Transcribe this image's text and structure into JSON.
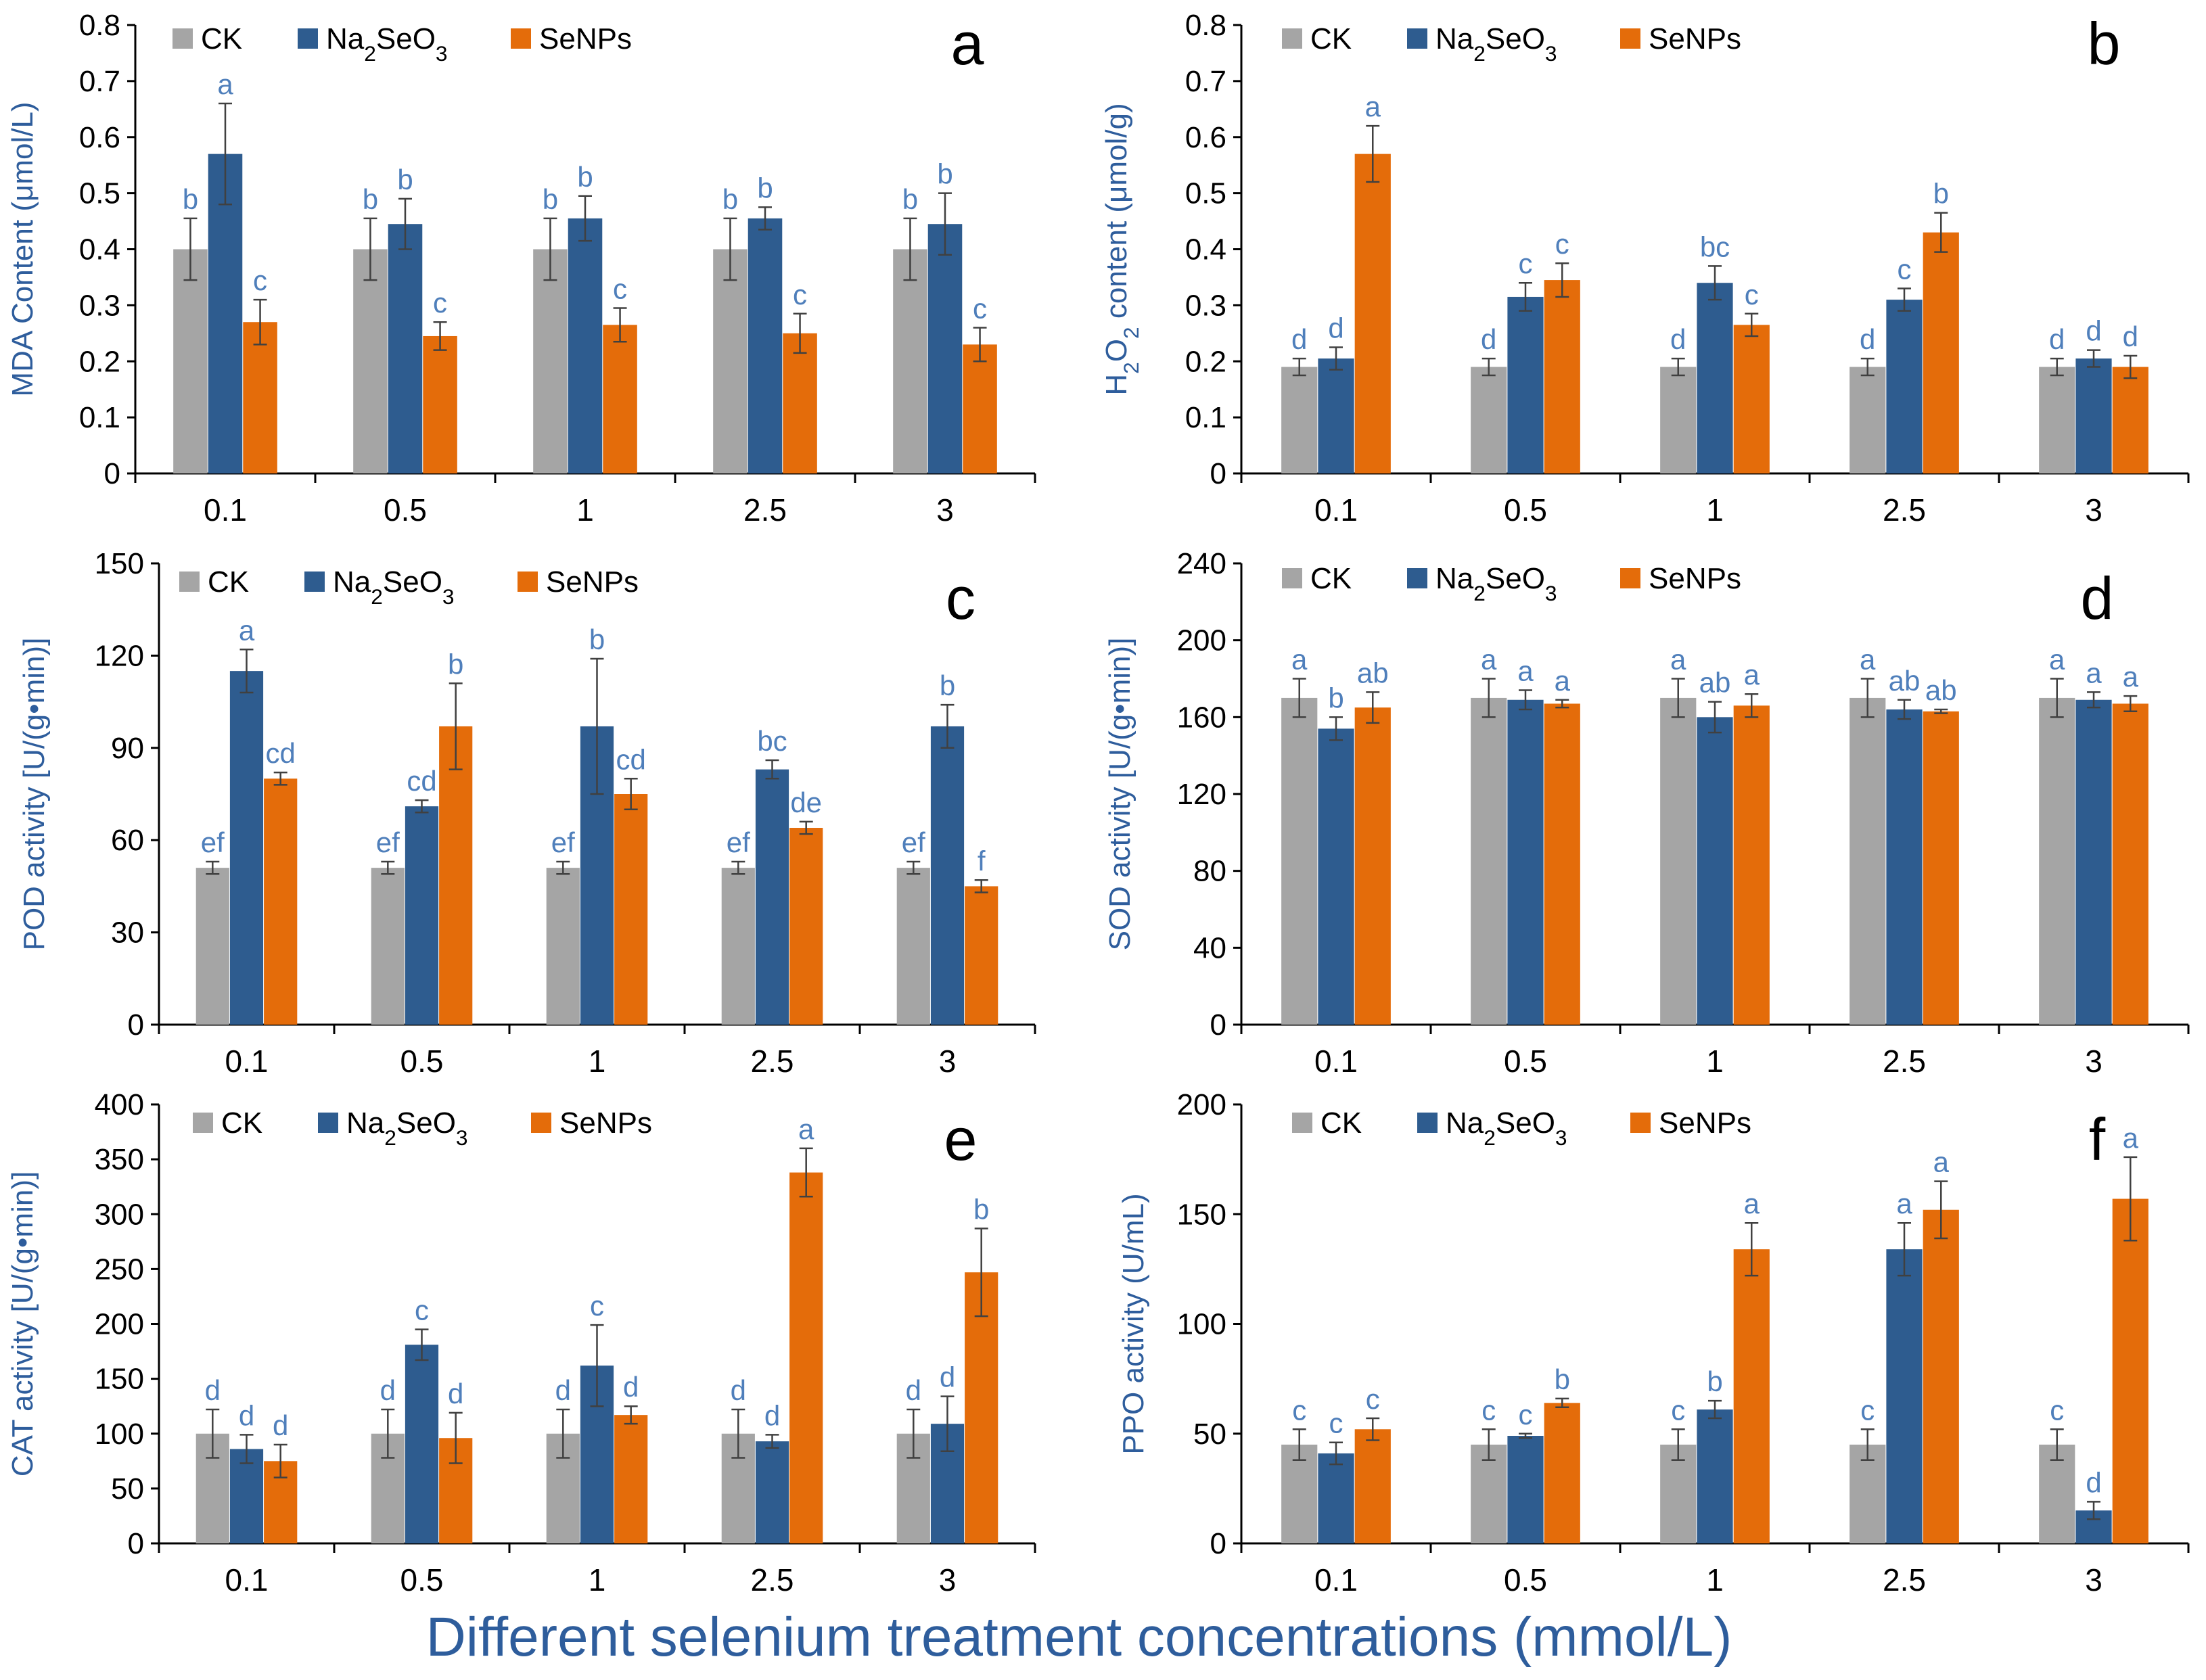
{
  "colors": {
    "CK": "#a5a5a5",
    "Na2SeO3": "#2e5c8f",
    "SeNPs": "#e46c0a",
    "sig": "#4f7fbb",
    "label": "#2e5d9c"
  },
  "x_axis_title": "Different selenium treatment concentrations (mmol/L)",
  "chart_data": [
    {
      "panel": "a",
      "type": "bar",
      "ylabel": "MDA Content (μmol/L)",
      "categories": [
        "0.1",
        "0.5",
        "1",
        "2.5",
        "3"
      ],
      "ylim": [
        0,
        0.8
      ],
      "yticks": [
        "0",
        "0.1",
        "0.2",
        "0.3",
        "0.4",
        "0.5",
        "0.6",
        "0.7",
        "0.8"
      ],
      "series": [
        {
          "name": "CK",
          "values": [
            0.4,
            0.4,
            0.4,
            0.4,
            0.4
          ],
          "errors": [
            0.055,
            0.055,
            0.055,
            0.055,
            0.055
          ],
          "letters": [
            "b",
            "b",
            "b",
            "b",
            "b"
          ]
        },
        {
          "name": "Na2SeO3",
          "values": [
            0.57,
            0.445,
            0.455,
            0.455,
            0.445
          ],
          "errors": [
            0.09,
            0.045,
            0.04,
            0.02,
            0.055
          ],
          "letters": [
            "a",
            "b",
            "b",
            "b",
            "b"
          ]
        },
        {
          "name": "SeNPs",
          "values": [
            0.27,
            0.245,
            0.265,
            0.25,
            0.23
          ],
          "errors": [
            0.04,
            0.025,
            0.03,
            0.035,
            0.03
          ],
          "letters": [
            "c",
            "c",
            "c",
            "c",
            "c"
          ]
        }
      ]
    },
    {
      "panel": "b",
      "type": "bar",
      "ylabel": "H2O2 content (μmol/g)",
      "categories": [
        "0.1",
        "0.5",
        "1",
        "2.5",
        "3"
      ],
      "ylim": [
        0,
        0.8
      ],
      "yticks": [
        "0",
        "0.1",
        "0.2",
        "0.3",
        "0.4",
        "0.5",
        "0.6",
        "0.7",
        "0.8"
      ],
      "series": [
        {
          "name": "CK",
          "values": [
            0.19,
            0.19,
            0.19,
            0.19,
            0.19
          ],
          "errors": [
            0.015,
            0.015,
            0.015,
            0.015,
            0.015
          ],
          "letters": [
            "d",
            "d",
            "d",
            "d",
            "d"
          ]
        },
        {
          "name": "Na2SeO3",
          "values": [
            0.205,
            0.315,
            0.34,
            0.31,
            0.205
          ],
          "errors": [
            0.02,
            0.025,
            0.03,
            0.02,
            0.015
          ],
          "letters": [
            "d",
            "c",
            "bc",
            "c",
            "d"
          ]
        },
        {
          "name": "SeNPs",
          "values": [
            0.57,
            0.345,
            0.265,
            0.43,
            0.19
          ],
          "errors": [
            0.05,
            0.03,
            0.02,
            0.035,
            0.02
          ],
          "letters": [
            "a",
            "c",
            "c",
            "b",
            "d"
          ]
        }
      ]
    },
    {
      "panel": "c",
      "type": "bar",
      "ylabel": "POD activity [U/(g•min)]",
      "categories": [
        "0.1",
        "0.5",
        "1",
        "2.5",
        "3"
      ],
      "ylim": [
        0,
        150
      ],
      "yticks": [
        "0",
        "30",
        "60",
        "90",
        "120",
        "150"
      ],
      "series": [
        {
          "name": "CK",
          "values": [
            51,
            51,
            51,
            51,
            51
          ],
          "errors": [
            2,
            2,
            2,
            2,
            2
          ],
          "letters": [
            "ef",
            "ef",
            "ef",
            "ef",
            "ef"
          ]
        },
        {
          "name": "Na2SeO3",
          "values": [
            115,
            71,
            97,
            83,
            97
          ],
          "errors": [
            7,
            2,
            22,
            3,
            7
          ],
          "letters": [
            "a",
            "cd",
            "b",
            "bc",
            "b"
          ]
        },
        {
          "name": "SeNPs",
          "values": [
            80,
            97,
            75,
            64,
            45
          ],
          "errors": [
            2,
            14,
            5,
            2,
            2
          ],
          "letters": [
            "cd",
            "b",
            "cd",
            "de",
            "f"
          ]
        }
      ]
    },
    {
      "panel": "d",
      "type": "bar",
      "ylabel": "SOD activity [U/(g•min)]",
      "categories": [
        "0.1",
        "0.5",
        "1",
        "2.5",
        "3"
      ],
      "ylim": [
        0,
        240
      ],
      "yticks": [
        "0",
        "40",
        "80",
        "120",
        "160",
        "200",
        "240"
      ],
      "series": [
        {
          "name": "CK",
          "values": [
            170,
            170,
            170,
            170,
            170
          ],
          "errors": [
            10,
            10,
            10,
            10,
            10
          ],
          "letters": [
            "a",
            "a",
            "a",
            "a",
            "a"
          ]
        },
        {
          "name": "Na2SeO3",
          "values": [
            154,
            169,
            160,
            164,
            169
          ],
          "errors": [
            6,
            5,
            8,
            5,
            4
          ],
          "letters": [
            "b",
            "a",
            "ab",
            "ab",
            "a"
          ]
        },
        {
          "name": "SeNPs",
          "values": [
            165,
            167,
            166,
            163,
            167
          ],
          "errors": [
            8,
            2,
            6,
            1,
            4
          ],
          "letters": [
            "ab",
            "a",
            "a",
            "ab",
            "a"
          ]
        }
      ]
    },
    {
      "panel": "e",
      "type": "bar",
      "ylabel": "CAT activity [U/(g•min)]",
      "categories": [
        "0.1",
        "0.5",
        "1",
        "2.5",
        "3"
      ],
      "ylim": [
        0,
        400
      ],
      "yticks": [
        "0",
        "50",
        "100",
        "150",
        "200",
        "250",
        "300",
        "350",
        "400"
      ],
      "series": [
        {
          "name": "CK",
          "values": [
            100,
            100,
            100,
            100,
            100
          ],
          "errors": [
            22,
            22,
            22,
            22,
            22
          ],
          "letters": [
            "d",
            "d",
            "d",
            "d",
            "d"
          ]
        },
        {
          "name": "Na2SeO3",
          "values": [
            86,
            181,
            162,
            93,
            109
          ],
          "errors": [
            13,
            14,
            37,
            6,
            25
          ],
          "letters": [
            "d",
            "c",
            "c",
            "d",
            "d"
          ]
        },
        {
          "name": "SeNPs",
          "values": [
            75,
            96,
            117,
            338,
            247
          ],
          "errors": [
            15,
            23,
            8,
            22,
            40
          ],
          "letters": [
            "d",
            "d",
            "d",
            "a",
            "b"
          ]
        }
      ]
    },
    {
      "panel": "f",
      "type": "bar",
      "ylabel": "PPO activity (U/mL)",
      "categories": [
        "0.1",
        "0.5",
        "1",
        "2.5",
        "3"
      ],
      "ylim": [
        0,
        200
      ],
      "yticks": [
        "0",
        "50",
        "100",
        "150",
        "200"
      ],
      "series": [
        {
          "name": "CK",
          "values": [
            45,
            45,
            45,
            45,
            45
          ],
          "errors": [
            7,
            7,
            7,
            7,
            7
          ],
          "letters": [
            "c",
            "c",
            "c",
            "c",
            "c"
          ]
        },
        {
          "name": "Na2SeO3",
          "values": [
            41,
            49,
            61,
            134,
            15
          ],
          "errors": [
            5,
            1,
            4,
            12,
            4
          ],
          "letters": [
            "c",
            "c",
            "b",
            "a",
            "d"
          ]
        },
        {
          "name": "SeNPs",
          "values": [
            52,
            64,
            134,
            152,
            157
          ],
          "errors": [
            5,
            2,
            12,
            13,
            19
          ],
          "letters": [
            "c",
            "b",
            "a",
            "a",
            "a"
          ]
        }
      ]
    }
  ]
}
